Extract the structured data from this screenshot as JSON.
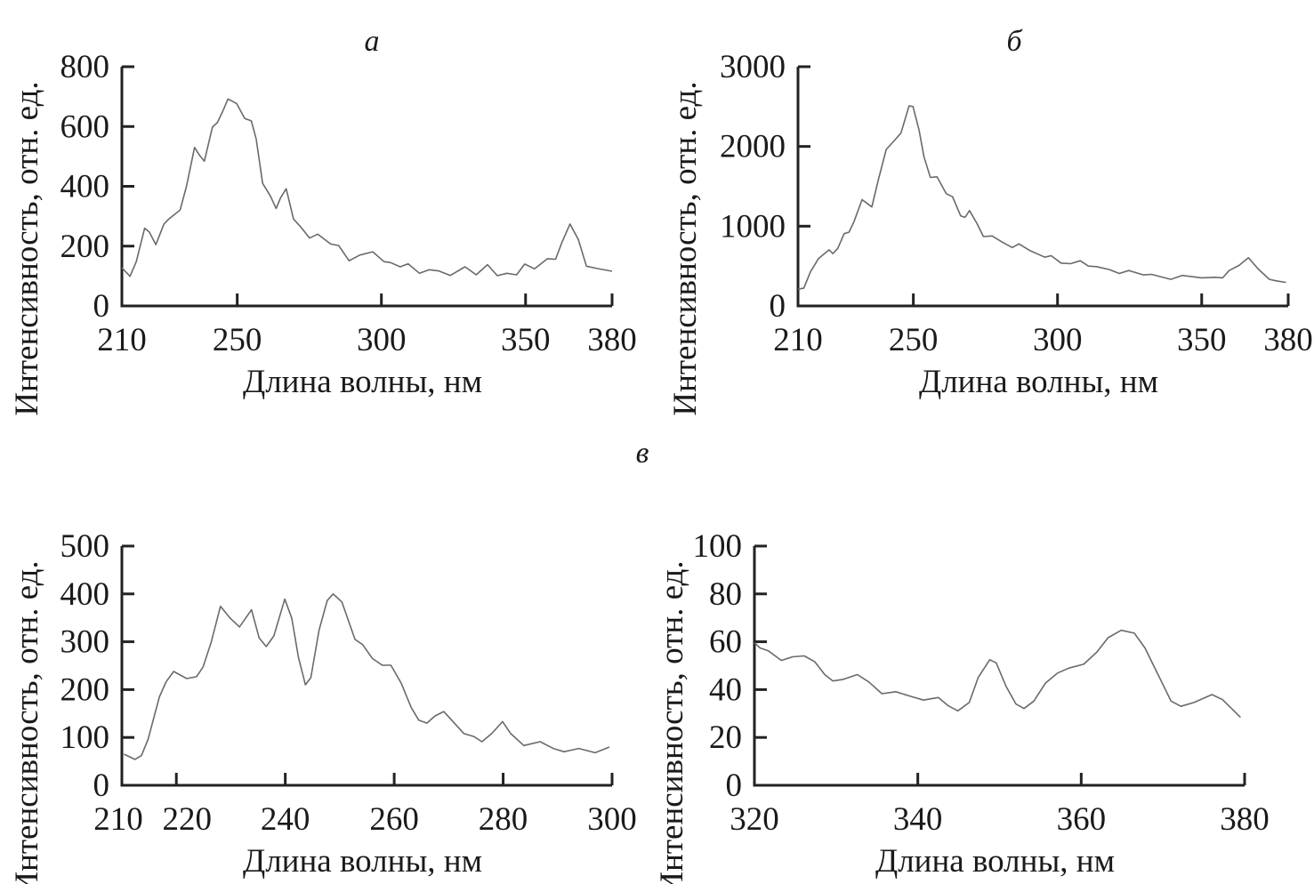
{
  "chart_data": [
    {
      "type": "line",
      "panel_label": "а",
      "xlabel": "Длина волны, нм",
      "ylabel": "Интенсивность, отн. ед.",
      "xlim": [
        210,
        380
      ],
      "ylim": [
        0,
        800
      ],
      "xticks": [
        210,
        250,
        300,
        350,
        380
      ],
      "yticks": [
        0,
        200,
        400,
        600,
        800
      ],
      "grid": false,
      "color": "#6a6a6a",
      "x": [
        210,
        212.8,
        215,
        217.9,
        219.5,
        221.8,
        224.6,
        226.3,
        230.2,
        232.4,
        235.2,
        236.9,
        238.6,
        241.4,
        243.1,
        244.8,
        246.8,
        249.8,
        252.6,
        254.9,
        256.6,
        258.8,
        261.6,
        263.5,
        265,
        267,
        269.5,
        272.3,
        275.1,
        277.9,
        282.4,
        285.2,
        288.8,
        292.5,
        297,
        300.9,
        303.1,
        306.5,
        309.3,
        313.2,
        316.6,
        320,
        323.9,
        329,
        332.9,
        336.8,
        340.2,
        343.5,
        346.9,
        349.7,
        353.1,
        357.6,
        360.4,
        362.6,
        365.4,
        368.3,
        371.1,
        375,
        380
      ],
      "y": [
        128,
        99,
        148,
        260,
        247,
        205,
        274,
        291,
        321,
        400,
        530,
        504,
        484,
        598,
        613,
        647,
        692,
        677,
        627,
        619,
        558,
        410,
        366,
        326,
        361,
        392,
        291,
        261,
        227,
        240,
        207,
        202,
        151,
        170,
        181,
        148,
        145,
        131,
        141,
        109,
        121,
        117,
        102,
        131,
        104,
        138,
        101,
        109,
        104,
        140,
        124,
        158,
        156,
        212,
        274,
        222,
        133,
        125,
        116
      ]
    },
    {
      "type": "line",
      "panel_label": "б",
      "xlabel": "Длина волны, нм",
      "ylabel": "Интенсивность, отн. ед.",
      "xlim": [
        210,
        380
      ],
      "ylim": [
        0,
        3000
      ],
      "xticks": [
        210,
        250,
        300,
        350,
        380
      ],
      "yticks": [
        0,
        1000,
        2000,
        3000
      ],
      "grid": false,
      "color": "#6a6a6a",
      "x": [
        210,
        212,
        214.3,
        217.1,
        220.8,
        222.1,
        223.8,
        226,
        227.7,
        229.4,
        232.2,
        235.6,
        237.8,
        240.6,
        243.4,
        245.7,
        248.5,
        249.9,
        252,
        253.7,
        255.9,
        258.2,
        261.4,
        263.6,
        266.4,
        267.9,
        269.5,
        272,
        274.3,
        277.3,
        281,
        284.3,
        286.6,
        290.5,
        295.6,
        297.8,
        301.2,
        304.5,
        307.9,
        310.7,
        313.5,
        318,
        321.4,
        324.7,
        329.8,
        332.6,
        339.3,
        343.2,
        350,
        354.5,
        357.3,
        359.5,
        362.9,
        366.2,
        369.6,
        373.5,
        375.8,
        379.2
      ],
      "y": [
        211,
        222,
        426,
        593,
        704,
        656,
        722,
        907,
        926,
        1056,
        1333,
        1241,
        1574,
        1963,
        2074,
        2167,
        2508,
        2500,
        2204,
        1870,
        1611,
        1619,
        1407,
        1370,
        1130,
        1111,
        1196,
        1037,
        870,
        878,
        796,
        733,
        778,
        693,
        611,
        630,
        537,
        530,
        567,
        500,
        493,
        456,
        407,
        444,
        389,
        396,
        333,
        382,
        352,
        359,
        352,
        444,
        507,
        604,
        463,
        333,
        315,
        296
      ]
    },
    {
      "type": "line",
      "panel_label": "в",
      "xlabel": "Длина волны, нм",
      "ylabel": "Интенсивность, отн. ед.",
      "xlim": [
        210,
        300
      ],
      "ylim": [
        0,
        500
      ],
      "xticks": [
        210,
        220,
        240,
        260,
        280,
        300
      ],
      "yticks": [
        0,
        100,
        200,
        300,
        400,
        500
      ],
      "grid": false,
      "color": "#6a6a6a",
      "x": [
        210.4,
        212.4,
        213.6,
        214.8,
        216.9,
        218.1,
        219.5,
        221.9,
        223.7,
        224.9,
        226.4,
        228.1,
        229.9,
        231.6,
        232.9,
        233.8,
        235.2,
        236.5,
        237.9,
        239.9,
        241.2,
        242.4,
        243.7,
        244.7,
        246.2,
        247.7,
        248.8,
        250.4,
        252.8,
        254.2,
        256,
        257.8,
        259.4,
        261.3,
        263.1,
        264.5,
        266,
        267.5,
        269.1,
        270.8,
        272.8,
        274.6,
        276.1,
        277.9,
        279.9,
        281.4,
        283.8,
        286.8,
        289.2,
        291.2,
        293.9,
        296.9,
        299.5
      ],
      "y": [
        65,
        54,
        62,
        96,
        185,
        216,
        238,
        223,
        227,
        247,
        299,
        374,
        349,
        331,
        352,
        367,
        308,
        290,
        312,
        389,
        349,
        268,
        210,
        225,
        324,
        386,
        400,
        383,
        305,
        294,
        265,
        251,
        251,
        213,
        163,
        136,
        130,
        145,
        154,
        133,
        108,
        102,
        91,
        108,
        133,
        108,
        83,
        91,
        77,
        70,
        77,
        68,
        80
      ]
    },
    {
      "type": "line",
      "panel_label": "",
      "xlabel": "Длина волны, нм",
      "ylabel": "Интенсивность, отн. ед.",
      "xlim": [
        320,
        380
      ],
      "ylim": [
        0,
        100
      ],
      "xticks": [
        320,
        340,
        360,
        380
      ],
      "yticks": [
        0,
        20,
        40,
        60,
        80,
        100
      ],
      "grid": false,
      "color": "#6a6a6a",
      "x": [
        320,
        320.7,
        321.7,
        323.3,
        324.7,
        326.1,
        327.4,
        328.6,
        329.6,
        330.8,
        332.6,
        334,
        335.6,
        337.3,
        338.9,
        340.7,
        342.5,
        343.7,
        344.9,
        346.3,
        347.4,
        348.8,
        349.6,
        350.8,
        352,
        353,
        354.2,
        355.6,
        357.1,
        358.5,
        360.3,
        361.9,
        363.3,
        364.9,
        366.5,
        367.8,
        369.4,
        371,
        372.2,
        373.8,
        376,
        377.3,
        379.5
      ],
      "y": [
        59.6,
        57.4,
        56.2,
        52.2,
        53.7,
        54.1,
        51.6,
        46.3,
        43.6,
        44.2,
        46.3,
        43.2,
        38.3,
        39.1,
        37.4,
        35.6,
        36.7,
        33.3,
        31.1,
        34.6,
        45.1,
        52.5,
        51.2,
        41.4,
        34,
        32.1,
        35.2,
        42.6,
        46.9,
        49,
        50.6,
        55.6,
        61.7,
        64.8,
        63.6,
        57.4,
        46.3,
        35.2,
        33,
        34.6,
        37.9,
        35.8,
        28.4
      ]
    }
  ]
}
